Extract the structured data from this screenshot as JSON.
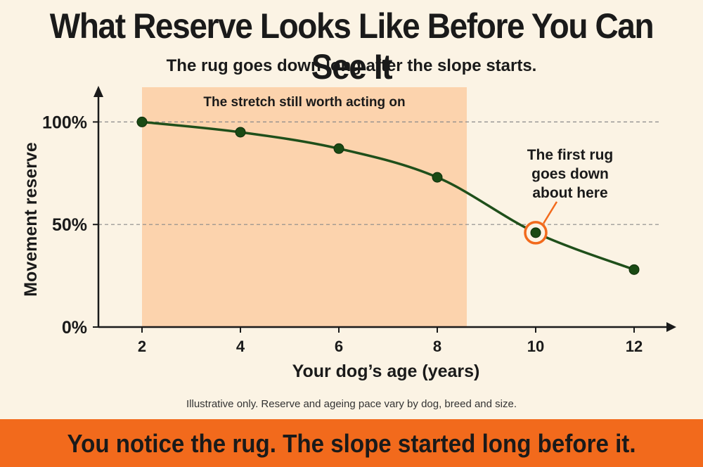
{
  "title": "What Reserve Looks Like Before You Can See It",
  "subtitle": "The rug goes down long after the slope starts.",
  "footnote": "Illustrative only. Reserve and ageing pace vary by dog, breed and size.",
  "banner": "You notice the rug. The slope started long before it.",
  "colors": {
    "background": "#fbf3e4",
    "shade": "#fcd3ad",
    "line": "#1f4f1a",
    "point": "#1a4a14",
    "highlight": "#f26a1c",
    "axis": "#1a1a1a",
    "banner": "#f26a1c"
  },
  "chart_data": {
    "type": "line",
    "xlabel": "Your dog’s age (years)",
    "ylabel": "Movement reserve",
    "x_ticks": [
      2,
      4,
      6,
      8,
      10,
      12
    ],
    "y_ticks": [
      {
        "value": 0,
        "label": "0%"
      },
      {
        "value": 50,
        "label": "50%"
      },
      {
        "value": 100,
        "label": "100%"
      }
    ],
    "xlim": [
      1,
      13.8
    ],
    "ylim": [
      0,
      110
    ],
    "reference_lines": [
      100,
      50
    ],
    "points": [
      {
        "x": 2,
        "y": 100
      },
      {
        "x": 4,
        "y": 95
      },
      {
        "x": 6,
        "y": 87
      },
      {
        "x": 8,
        "y": 73
      },
      {
        "x": 10,
        "y": 46
      },
      {
        "x": 12,
        "y": 28
      }
    ],
    "shaded_region": {
      "x_start": 2,
      "x_end": 8.6,
      "label": "The stretch still worth acting on"
    },
    "highlight": {
      "x": 10,
      "y": 46,
      "label_lines": [
        "The first rug",
        "goes down",
        "about here"
      ]
    }
  }
}
